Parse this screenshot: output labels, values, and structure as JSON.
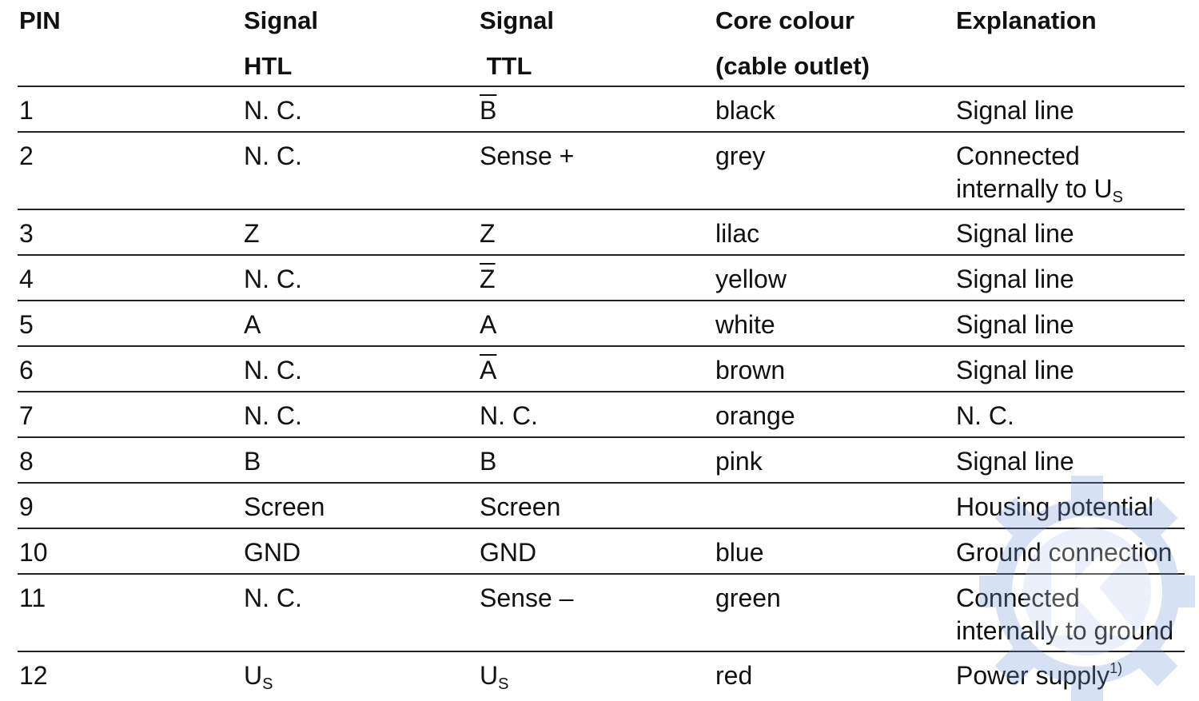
{
  "headers": [
    {
      "line1": "PIN",
      "line2": ""
    },
    {
      "line1": "Signal",
      "line2": "HTL"
    },
    {
      "line1": "Signal",
      "line2": " TTL"
    },
    {
      "line1": "Core colour",
      "line2": "(cable outlet)"
    },
    {
      "line1": "Explanation",
      "line2": ""
    }
  ],
  "rows": [
    [
      {
        "text": "1"
      },
      {
        "text": "N. C."
      },
      {
        "text": "B",
        "overline": true
      },
      {
        "text": "black"
      },
      {
        "text": "Signal line"
      }
    ],
    [
      {
        "text": "2"
      },
      {
        "text": "N. C."
      },
      {
        "text": "Sense +"
      },
      {
        "text": "grey"
      },
      {
        "text": "Connected\ninternally to U",
        "sub": "S"
      }
    ],
    [
      {
        "text": "3"
      },
      {
        "text": "Z"
      },
      {
        "text": "Z"
      },
      {
        "text": "lilac"
      },
      {
        "text": "Signal line"
      }
    ],
    [
      {
        "text": "4"
      },
      {
        "text": "N. C."
      },
      {
        "text": "Z",
        "overline": true
      },
      {
        "text": "yellow"
      },
      {
        "text": "Signal line"
      }
    ],
    [
      {
        "text": "5"
      },
      {
        "text": "A"
      },
      {
        "text": "A"
      },
      {
        "text": "white"
      },
      {
        "text": "Signal line"
      }
    ],
    [
      {
        "text": "6"
      },
      {
        "text": "N. C."
      },
      {
        "text": "A",
        "overline": true
      },
      {
        "text": "brown"
      },
      {
        "text": "Signal line"
      }
    ],
    [
      {
        "text": "7"
      },
      {
        "text": "N. C."
      },
      {
        "text": "N. C."
      },
      {
        "text": "orange"
      },
      {
        "text": "N. C."
      }
    ],
    [
      {
        "text": "8"
      },
      {
        "text": "B"
      },
      {
        "text": "B"
      },
      {
        "text": "pink"
      },
      {
        "text": "Signal line"
      }
    ],
    [
      {
        "text": "9"
      },
      {
        "text": "Screen"
      },
      {
        "text": "Screen"
      },
      {
        "text": ""
      },
      {
        "text": "Housing potential"
      }
    ],
    [
      {
        "text": "10"
      },
      {
        "text": "GND"
      },
      {
        "text": "GND"
      },
      {
        "text": "blue"
      },
      {
        "text": "Ground connection"
      }
    ],
    [
      {
        "text": "11"
      },
      {
        "text": "N. C."
      },
      {
        "text": "Sense –"
      },
      {
        "text": "green"
      },
      {
        "text": "Connected\ninternally to ground"
      }
    ],
    [
      {
        "text": "12"
      },
      {
        "text": "U",
        "sub": "S"
      },
      {
        "text": "U",
        "sub": "S"
      },
      {
        "text": "red"
      },
      {
        "text": "Power supply",
        "sup": "1)"
      }
    ]
  ],
  "watermark": {
    "icon": "gear-logo-icon",
    "color": "#6f95d8"
  }
}
